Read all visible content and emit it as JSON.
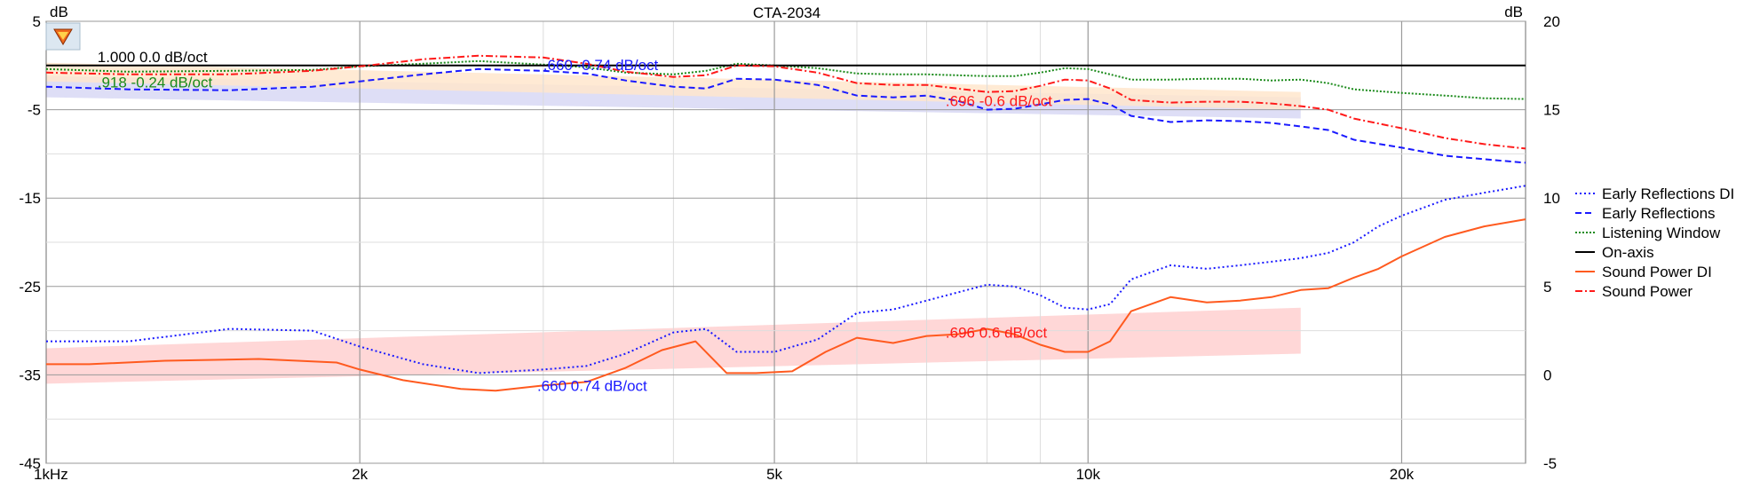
{
  "chart_data": {
    "type": "line",
    "title": "CTA-2034",
    "xscale": "log",
    "xlim": [
      1000,
      26300
    ],
    "ylim_left": [
      -45,
      5
    ],
    "ylim_right": [
      -5,
      20
    ],
    "ylabel_left": "dB",
    "ylabel_right": "dB",
    "x_ticks": [
      {
        "value": 1000,
        "label": "1kHz"
      },
      {
        "value": 2000,
        "label": "2k"
      },
      {
        "value": 5000,
        "label": "5k"
      },
      {
        "value": 10000,
        "label": "10k"
      },
      {
        "value": 20000,
        "label": "20k"
      }
    ],
    "y_ticks_left": [
      5,
      -5,
      -15,
      -25,
      -35,
      -45
    ],
    "y_ticks_right": [
      20,
      15,
      10,
      5,
      0,
      -5
    ],
    "grid": true,
    "legend_position": "right",
    "series": [
      {
        "name": "Early Reflections DI",
        "axis": "right",
        "color": "#1a1aff",
        "dash": "2,3",
        "points": [
          [
            1000,
            1.9
          ],
          [
            1200,
            1.9
          ],
          [
            1500,
            2.6
          ],
          [
            1800,
            2.5
          ],
          [
            2000,
            1.6
          ],
          [
            2300,
            0.6
          ],
          [
            2600,
            0.1
          ],
          [
            3000,
            0.3
          ],
          [
            3300,
            0.5
          ],
          [
            3600,
            1.2
          ],
          [
            4000,
            2.4
          ],
          [
            4300,
            2.6
          ],
          [
            4600,
            1.3
          ],
          [
            5000,
            1.3
          ],
          [
            5500,
            2.0
          ],
          [
            6000,
            3.5
          ],
          [
            6500,
            3.7
          ],
          [
            7000,
            4.2
          ],
          [
            8000,
            5.1
          ],
          [
            8500,
            5.0
          ],
          [
            9000,
            4.5
          ],
          [
            9500,
            3.8
          ],
          [
            10000,
            3.7
          ],
          [
            10500,
            4.0
          ],
          [
            11000,
            5.4
          ],
          [
            12000,
            6.2
          ],
          [
            13000,
            6.0
          ],
          [
            14000,
            6.2
          ],
          [
            15000,
            6.4
          ],
          [
            16000,
            6.6
          ],
          [
            17000,
            6.9
          ],
          [
            18000,
            7.5
          ],
          [
            19000,
            8.4
          ],
          [
            20000,
            9.0
          ],
          [
            22000,
            9.9
          ],
          [
            24000,
            10.3
          ],
          [
            26300,
            10.7
          ]
        ]
      },
      {
        "name": "Early Reflections",
        "axis": "left",
        "color": "#1a1aff",
        "dash": "7,4",
        "points": [
          [
            1000,
            -2.4
          ],
          [
            1200,
            -2.7
          ],
          [
            1500,
            -2.8
          ],
          [
            1800,
            -2.4
          ],
          [
            2000,
            -1.8
          ],
          [
            2300,
            -1.0
          ],
          [
            2600,
            -0.4
          ],
          [
            3000,
            -0.6
          ],
          [
            3300,
            -0.9
          ],
          [
            3600,
            -1.7
          ],
          [
            4000,
            -2.4
          ],
          [
            4300,
            -2.6
          ],
          [
            4600,
            -1.5
          ],
          [
            5000,
            -1.6
          ],
          [
            5500,
            -2.2
          ],
          [
            6000,
            -3.4
          ],
          [
            6500,
            -3.6
          ],
          [
            7000,
            -3.4
          ],
          [
            7500,
            -4.0
          ],
          [
            8000,
            -5.0
          ],
          [
            8500,
            -4.9
          ],
          [
            9000,
            -4.4
          ],
          [
            9500,
            -3.9
          ],
          [
            10000,
            -3.8
          ],
          [
            10500,
            -4.4
          ],
          [
            11000,
            -5.7
          ],
          [
            12000,
            -6.4
          ],
          [
            13000,
            -6.2
          ],
          [
            14000,
            -6.3
          ],
          [
            15000,
            -6.5
          ],
          [
            16000,
            -6.9
          ],
          [
            17000,
            -7.3
          ],
          [
            18000,
            -8.4
          ],
          [
            20000,
            -9.3
          ],
          [
            22000,
            -10.2
          ],
          [
            24000,
            -10.6
          ],
          [
            26300,
            -11.0
          ]
        ]
      },
      {
        "name": "Listening Window",
        "axis": "left",
        "color": "#1a8a1a",
        "dash": "2,2",
        "points": [
          [
            1000,
            -0.4
          ],
          [
            1200,
            -0.7
          ],
          [
            1500,
            -0.6
          ],
          [
            1800,
            -0.5
          ],
          [
            2000,
            -0.1
          ],
          [
            2300,
            0.2
          ],
          [
            2600,
            0.5
          ],
          [
            3000,
            0.1
          ],
          [
            3300,
            -0.2
          ],
          [
            3600,
            -0.8
          ],
          [
            4000,
            -1.0
          ],
          [
            4300,
            -0.6
          ],
          [
            4600,
            0.2
          ],
          [
            5000,
            0.0
          ],
          [
            5500,
            -0.3
          ],
          [
            6000,
            -0.9
          ],
          [
            6500,
            -1.0
          ],
          [
            7000,
            -1.0
          ],
          [
            8000,
            -1.2
          ],
          [
            8500,
            -1.2
          ],
          [
            9000,
            -0.8
          ],
          [
            9500,
            -0.3
          ],
          [
            10000,
            -0.4
          ],
          [
            10500,
            -1.0
          ],
          [
            11000,
            -1.6
          ],
          [
            12000,
            -1.6
          ],
          [
            13000,
            -1.5
          ],
          [
            14000,
            -1.5
          ],
          [
            15000,
            -1.7
          ],
          [
            16000,
            -1.6
          ],
          [
            17000,
            -2.0
          ],
          [
            18000,
            -2.7
          ],
          [
            20000,
            -3.1
          ],
          [
            22000,
            -3.4
          ],
          [
            24000,
            -3.7
          ],
          [
            26300,
            -3.8
          ]
        ]
      },
      {
        "name": "On-axis",
        "axis": "left",
        "color": "#000000",
        "dash": "",
        "points": [
          [
            1000,
            0.0
          ],
          [
            26300,
            0.0
          ]
        ]
      },
      {
        "name": "Sound Power DI",
        "axis": "right",
        "color": "#ff5a1f",
        "dash": "",
        "points": [
          [
            1000,
            0.6
          ],
          [
            1100,
            0.6
          ],
          [
            1300,
            0.8
          ],
          [
            1600,
            0.9
          ],
          [
            1900,
            0.7
          ],
          [
            2000,
            0.3
          ],
          [
            2200,
            -0.3
          ],
          [
            2500,
            -0.8
          ],
          [
            2700,
            -0.9
          ],
          [
            3000,
            -0.6
          ],
          [
            3300,
            -0.4
          ],
          [
            3600,
            0.4
          ],
          [
            3900,
            1.4
          ],
          [
            4200,
            1.9
          ],
          [
            4500,
            0.1
          ],
          [
            4800,
            0.1
          ],
          [
            5200,
            0.2
          ],
          [
            5600,
            1.3
          ],
          [
            6000,
            2.1
          ],
          [
            6500,
            1.8
          ],
          [
            7000,
            2.2
          ],
          [
            7500,
            2.3
          ],
          [
            8000,
            2.6
          ],
          [
            8500,
            2.3
          ],
          [
            9000,
            1.7
          ],
          [
            9500,
            1.3
          ],
          [
            10000,
            1.3
          ],
          [
            10500,
            1.9
          ],
          [
            11000,
            3.6
          ],
          [
            12000,
            4.4
          ],
          [
            13000,
            4.1
          ],
          [
            14000,
            4.2
          ],
          [
            15000,
            4.4
          ],
          [
            16000,
            4.8
          ],
          [
            17000,
            4.9
          ],
          [
            18000,
            5.5
          ],
          [
            19000,
            6.0
          ],
          [
            20000,
            6.7
          ],
          [
            22000,
            7.8
          ],
          [
            24000,
            8.4
          ],
          [
            26300,
            8.8
          ]
        ]
      },
      {
        "name": "Sound Power",
        "axis": "left",
        "color": "#ff1a1a",
        "dash": "8,3,2,3",
        "points": [
          [
            1000,
            -0.8
          ],
          [
            1200,
            -1.0
          ],
          [
            1500,
            -1.0
          ],
          [
            1800,
            -0.6
          ],
          [
            2000,
            -0.1
          ],
          [
            2300,
            0.7
          ],
          [
            2600,
            1.1
          ],
          [
            3000,
            0.9
          ],
          [
            3300,
            0.2
          ],
          [
            3600,
            -0.7
          ],
          [
            4000,
            -1.3
          ],
          [
            4300,
            -1.1
          ],
          [
            4600,
            0.0
          ],
          [
            5000,
            -0.1
          ],
          [
            5500,
            -0.8
          ],
          [
            6000,
            -2.0
          ],
          [
            6500,
            -2.2
          ],
          [
            7000,
            -2.2
          ],
          [
            8000,
            -3.0
          ],
          [
            8500,
            -2.9
          ],
          [
            9000,
            -2.3
          ],
          [
            9500,
            -1.6
          ],
          [
            10000,
            -1.7
          ],
          [
            10500,
            -2.6
          ],
          [
            11000,
            -3.9
          ],
          [
            12000,
            -4.2
          ],
          [
            13000,
            -4.1
          ],
          [
            14000,
            -4.1
          ],
          [
            15000,
            -4.3
          ],
          [
            16000,
            -4.6
          ],
          [
            17000,
            -5.0
          ],
          [
            18000,
            -6.0
          ],
          [
            20000,
            -7.1
          ],
          [
            22000,
            -8.2
          ],
          [
            24000,
            -8.9
          ],
          [
            26300,
            -9.4
          ]
        ]
      }
    ],
    "bands": [
      {
        "series": "Early Reflections",
        "axis": "left",
        "color": "#d8d8f5",
        "x0": 1000,
        "x1": 16000,
        "y0_low": -3.6,
        "y0_high": -1.2,
        "y1_low": -6.0,
        "y1_high": -3.6
      },
      {
        "series": "Sound Power",
        "axis": "left",
        "color": "#ffe6cc",
        "x0": 1000,
        "x1": 16000,
        "y0_low": -1.8,
        "y0_high": 0.3,
        "y1_low": -5.0,
        "y1_high": -3.0
      },
      {
        "series": "Sound Power DI",
        "axis": "right",
        "color": "#ffd0d0",
        "x0": 1000,
        "x1": 16000,
        "y0_low": -0.5,
        "y0_high": 1.5,
        "y1_low": 1.2,
        "y1_high": 3.8
      }
    ],
    "annotations": [
      {
        "text": "1.000  0.0 dB/oct",
        "x": 1120,
        "y": 1.0,
        "axis": "left",
        "color": "#000000"
      },
      {
        "text": ".918  -0.24 dB/oct",
        "x": 1120,
        "y": -1.9,
        "axis": "left",
        "color": "#1a8a1a"
      },
      {
        "text": ".660  -0.74 dB/oct",
        "x": 3000,
        "y": 0.1,
        "axis": "left",
        "color": "#1a1aff"
      },
      {
        "text": ".696  -0.6 dB/oct",
        "x": 7300,
        "y": -4.0,
        "axis": "left",
        "color": "#ff1a1a"
      },
      {
        "text": ".696  0.6 dB/oct",
        "x": 7300,
        "y": 2.4,
        "axis": "right",
        "color": "#ff1a1a"
      },
      {
        "text": ".660  0.74 dB/oct",
        "x": 2960,
        "y": -0.6,
        "axis": "right",
        "color": "#1a1aff"
      }
    ]
  }
}
